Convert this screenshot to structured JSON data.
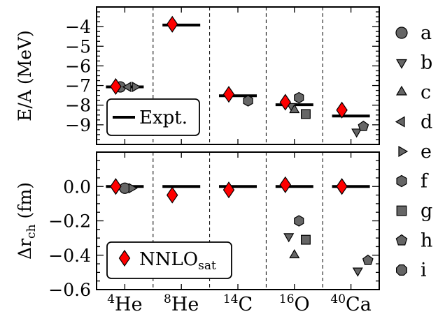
{
  "chart_data": [
    {
      "type": "scatter",
      "panel": "top",
      "ylabel": "E/A (MeV)",
      "ylim": [
        -10,
        -3
      ],
      "yticks": [
        -9,
        -8,
        -7,
        -6,
        -5,
        -4
      ],
      "categories": [
        "He4",
        "He8",
        "C14",
        "O16",
        "Ca40"
      ],
      "expt": [
        -7.07,
        -3.92,
        -7.52,
        -7.98,
        -8.55
      ],
      "nnlo_sat": [
        -7.05,
        -3.88,
        -7.45,
        -7.85,
        -8.25
      ],
      "series": [
        {
          "name": "a",
          "points": [
            {
              "category": "He4",
              "offset": -0.08,
              "y": -7.07
            }
          ]
        },
        {
          "name": "b",
          "points": [
            {
              "category": "O16",
              "offset": -0.05,
              "y": -8.05
            },
            {
              "category": "Ca40",
              "offset": 0.1,
              "y": -9.35
            }
          ]
        },
        {
          "name": "c",
          "points": [
            {
              "category": "O16",
              "offset": 0.0,
              "y": -8.25
            }
          ]
        },
        {
          "name": "d",
          "points": [
            {
              "category": "He4",
              "offset": 0.06,
              "y": -7.07
            }
          ]
        },
        {
          "name": "e",
          "points": [
            {
              "category": "He4",
              "offset": 0.18,
              "y": -7.07
            }
          ]
        },
        {
          "name": "f",
          "points": [
            {
              "category": "C14",
              "offset": 0.18,
              "y": -7.78
            },
            {
              "category": "O16",
              "offset": 0.08,
              "y": -7.62
            }
          ]
        },
        {
          "name": "g",
          "points": [
            {
              "category": "O16",
              "offset": 0.2,
              "y": -8.45
            }
          ]
        },
        {
          "name": "h",
          "points": [
            {
              "category": "Ca40",
              "offset": 0.22,
              "y": -9.08
            }
          ]
        },
        {
          "name": "i",
          "points": []
        }
      ],
      "legend": {
        "label": "Expt.",
        "placement": "bottom-left"
      }
    },
    {
      "type": "scatter",
      "panel": "bottom",
      "ylabel": "Δr_ch (fm)",
      "ylim": [
        -0.6,
        0.2
      ],
      "yticks": [
        -0.6,
        -0.4,
        -0.2,
        0.0
      ],
      "yticklabels": [
        "−0.6",
        "−0.4",
        "−0.2",
        "0.0"
      ],
      "categories": [
        "He4",
        "He8",
        "C14",
        "O16",
        "Ca40"
      ],
      "expt": [
        0.0,
        0.0,
        0.0,
        0.0,
        0.0
      ],
      "nnlo_sat": [
        0.0,
        -0.05,
        -0.02,
        0.01,
        0.0
      ],
      "series": [
        {
          "name": "a",
          "points": [
            {
              "category": "He4",
              "offset": 0.0,
              "y": -0.01
            }
          ]
        },
        {
          "name": "b",
          "points": [
            {
              "category": "O16",
              "offset": -0.1,
              "y": -0.29
            },
            {
              "category": "Ca40",
              "offset": 0.12,
              "y": -0.49
            }
          ]
        },
        {
          "name": "c",
          "points": [
            {
              "category": "O16",
              "offset": 0.0,
              "y": -0.4
            }
          ]
        },
        {
          "name": "d",
          "points": []
        },
        {
          "name": "e",
          "points": [
            {
              "category": "He4",
              "offset": 0.12,
              "y": -0.01
            }
          ]
        },
        {
          "name": "f",
          "points": [
            {
              "category": "O16",
              "offset": 0.08,
              "y": -0.2
            }
          ]
        },
        {
          "name": "g",
          "points": [
            {
              "category": "O16",
              "offset": 0.2,
              "y": -0.31
            }
          ]
        },
        {
          "name": "h",
          "points": [
            {
              "category": "Ca40",
              "offset": 0.3,
              "y": -0.43
            }
          ]
        },
        {
          "name": "i",
          "points": []
        }
      ],
      "legend": {
        "label": "NNLO",
        "subscript": "sat",
        "placement": "bottom-left"
      }
    }
  ],
  "nuclei": [
    {
      "key": "He4",
      "mass": "4",
      "symbol": "He"
    },
    {
      "key": "He8",
      "mass": "8",
      "symbol": "He"
    },
    {
      "key": "C14",
      "mass": "14",
      "symbol": "C"
    },
    {
      "key": "O16",
      "mass": "16",
      "symbol": "O"
    },
    {
      "key": "Ca40",
      "mass": "40",
      "symbol": "Ca"
    }
  ],
  "side_legend": [
    {
      "label": "a",
      "marker": "circle-icon"
    },
    {
      "label": "b",
      "marker": "triangle-down-icon"
    },
    {
      "label": "c",
      "marker": "triangle-up-icon"
    },
    {
      "label": "d",
      "marker": "triangle-left-icon"
    },
    {
      "label": "e",
      "marker": "triangle-right-icon"
    },
    {
      "label": "f",
      "marker": "hexagon-icon"
    },
    {
      "label": "g",
      "marker": "square-icon"
    },
    {
      "label": "h",
      "marker": "pentagon-icon"
    },
    {
      "label": "i",
      "marker": "octagon-icon"
    }
  ],
  "colors": {
    "marker_fill": "#666666",
    "nnlo_fill": "#ff0000",
    "line": "#000000"
  }
}
